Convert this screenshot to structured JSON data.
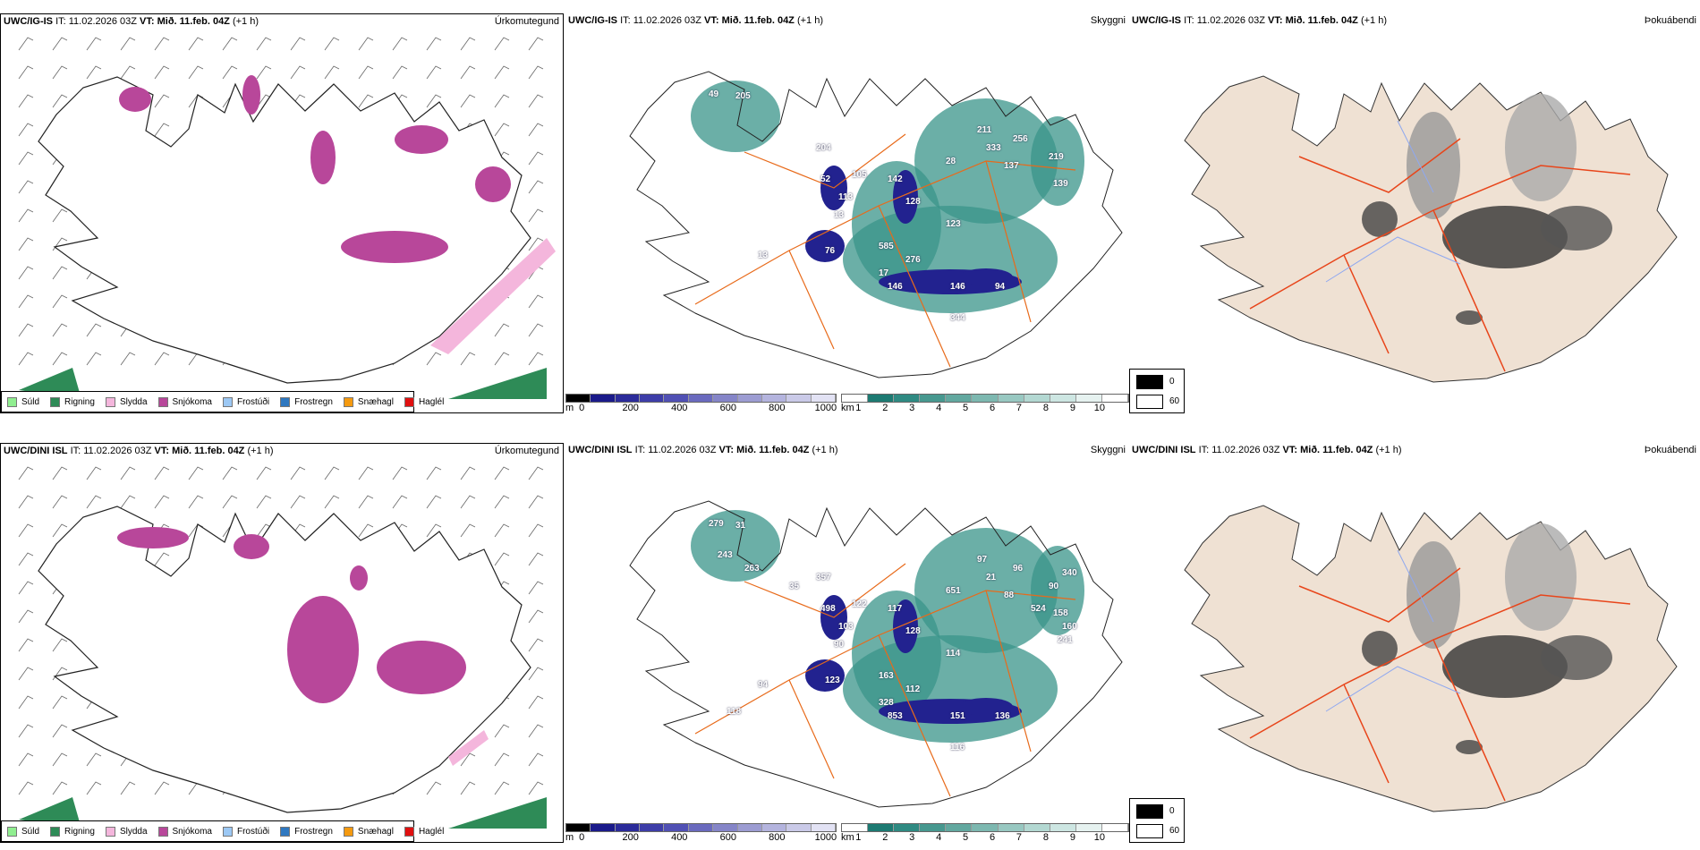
{
  "rows": [
    {
      "model": "UWC/IG-IS",
      "it": "IT: 11.02.2026 03Z",
      "vt": "VT: Mið. 11.feb. 04Z",
      "lead": "(+1 h)",
      "labels": [
        "49",
        "205",
        "204",
        "52",
        "105",
        "113",
        "13",
        "142",
        "128",
        "123",
        "585",
        "276",
        "146",
        "146",
        "94",
        "344",
        "76",
        "13",
        "211",
        "333",
        "256",
        "137",
        "219",
        "139",
        "28",
        "17"
      ]
    },
    {
      "model": "UWC/DINI ISL",
      "it": "IT: 11.02.2026 03Z",
      "vt": "VT: Mið. 11.feb. 04Z",
      "lead": "(+1 h)",
      "labels": [
        "279",
        "31",
        "357",
        "498",
        "122",
        "103",
        "90",
        "117",
        "128",
        "114",
        "163",
        "112",
        "853",
        "151",
        "136",
        "116",
        "123",
        "94",
        "97",
        "21",
        "96",
        "88",
        "90",
        "158",
        "651",
        "328",
        "263",
        "243",
        "340",
        "524",
        "160",
        "241",
        "118",
        "35"
      ]
    }
  ],
  "titles": {
    "precip": "Úrkomutegund",
    "vis": "Skyggni",
    "fog": "Þokuábendi"
  },
  "precip_legend": [
    {
      "label": "Súld",
      "color": "#90ee90"
    },
    {
      "label": "Rigning",
      "color": "#2e8b57"
    },
    {
      "label": "Slydda",
      "color": "#f4b6dc"
    },
    {
      "label": "Snjókoma",
      "color": "#b8479a"
    },
    {
      "label": "Frostúði",
      "color": "#9cc8f4"
    },
    {
      "label": "Frostregn",
      "color": "#2f78c0"
    },
    {
      "label": "Snæhagl",
      "color": "#f59a10"
    },
    {
      "label": "Haglél",
      "color": "#e01010"
    }
  ],
  "cloud_base_bar": {
    "unit": "m",
    "ticks": [
      "0",
      "200",
      "400",
      "600",
      "800",
      "1000"
    ],
    "colors": [
      "#000000",
      "#1a1a8a",
      "#2b2b9a",
      "#3d3da8",
      "#5050b4",
      "#6a6abe",
      "#8585c8",
      "#9c9cd2",
      "#b4b4de",
      "#cacae8",
      "#e2e2f4"
    ]
  },
  "visibility_bar": {
    "unit": "km",
    "ticks": [
      "1",
      "2",
      "3",
      "4",
      "5",
      "6",
      "7",
      "8",
      "9",
      "10"
    ],
    "colors": [
      "#ffffff",
      "#1d7a72",
      "#2f8a82",
      "#47988f",
      "#62a89f",
      "#7db8b0",
      "#98c8c1",
      "#b3d8d2",
      "#cde6e2",
      "#e6f2f0",
      "#ffffff"
    ]
  },
  "fog_legend": [
    {
      "label": "0",
      "color": "#000000"
    },
    {
      "label": "60",
      "color": "#ffffff"
    }
  ]
}
